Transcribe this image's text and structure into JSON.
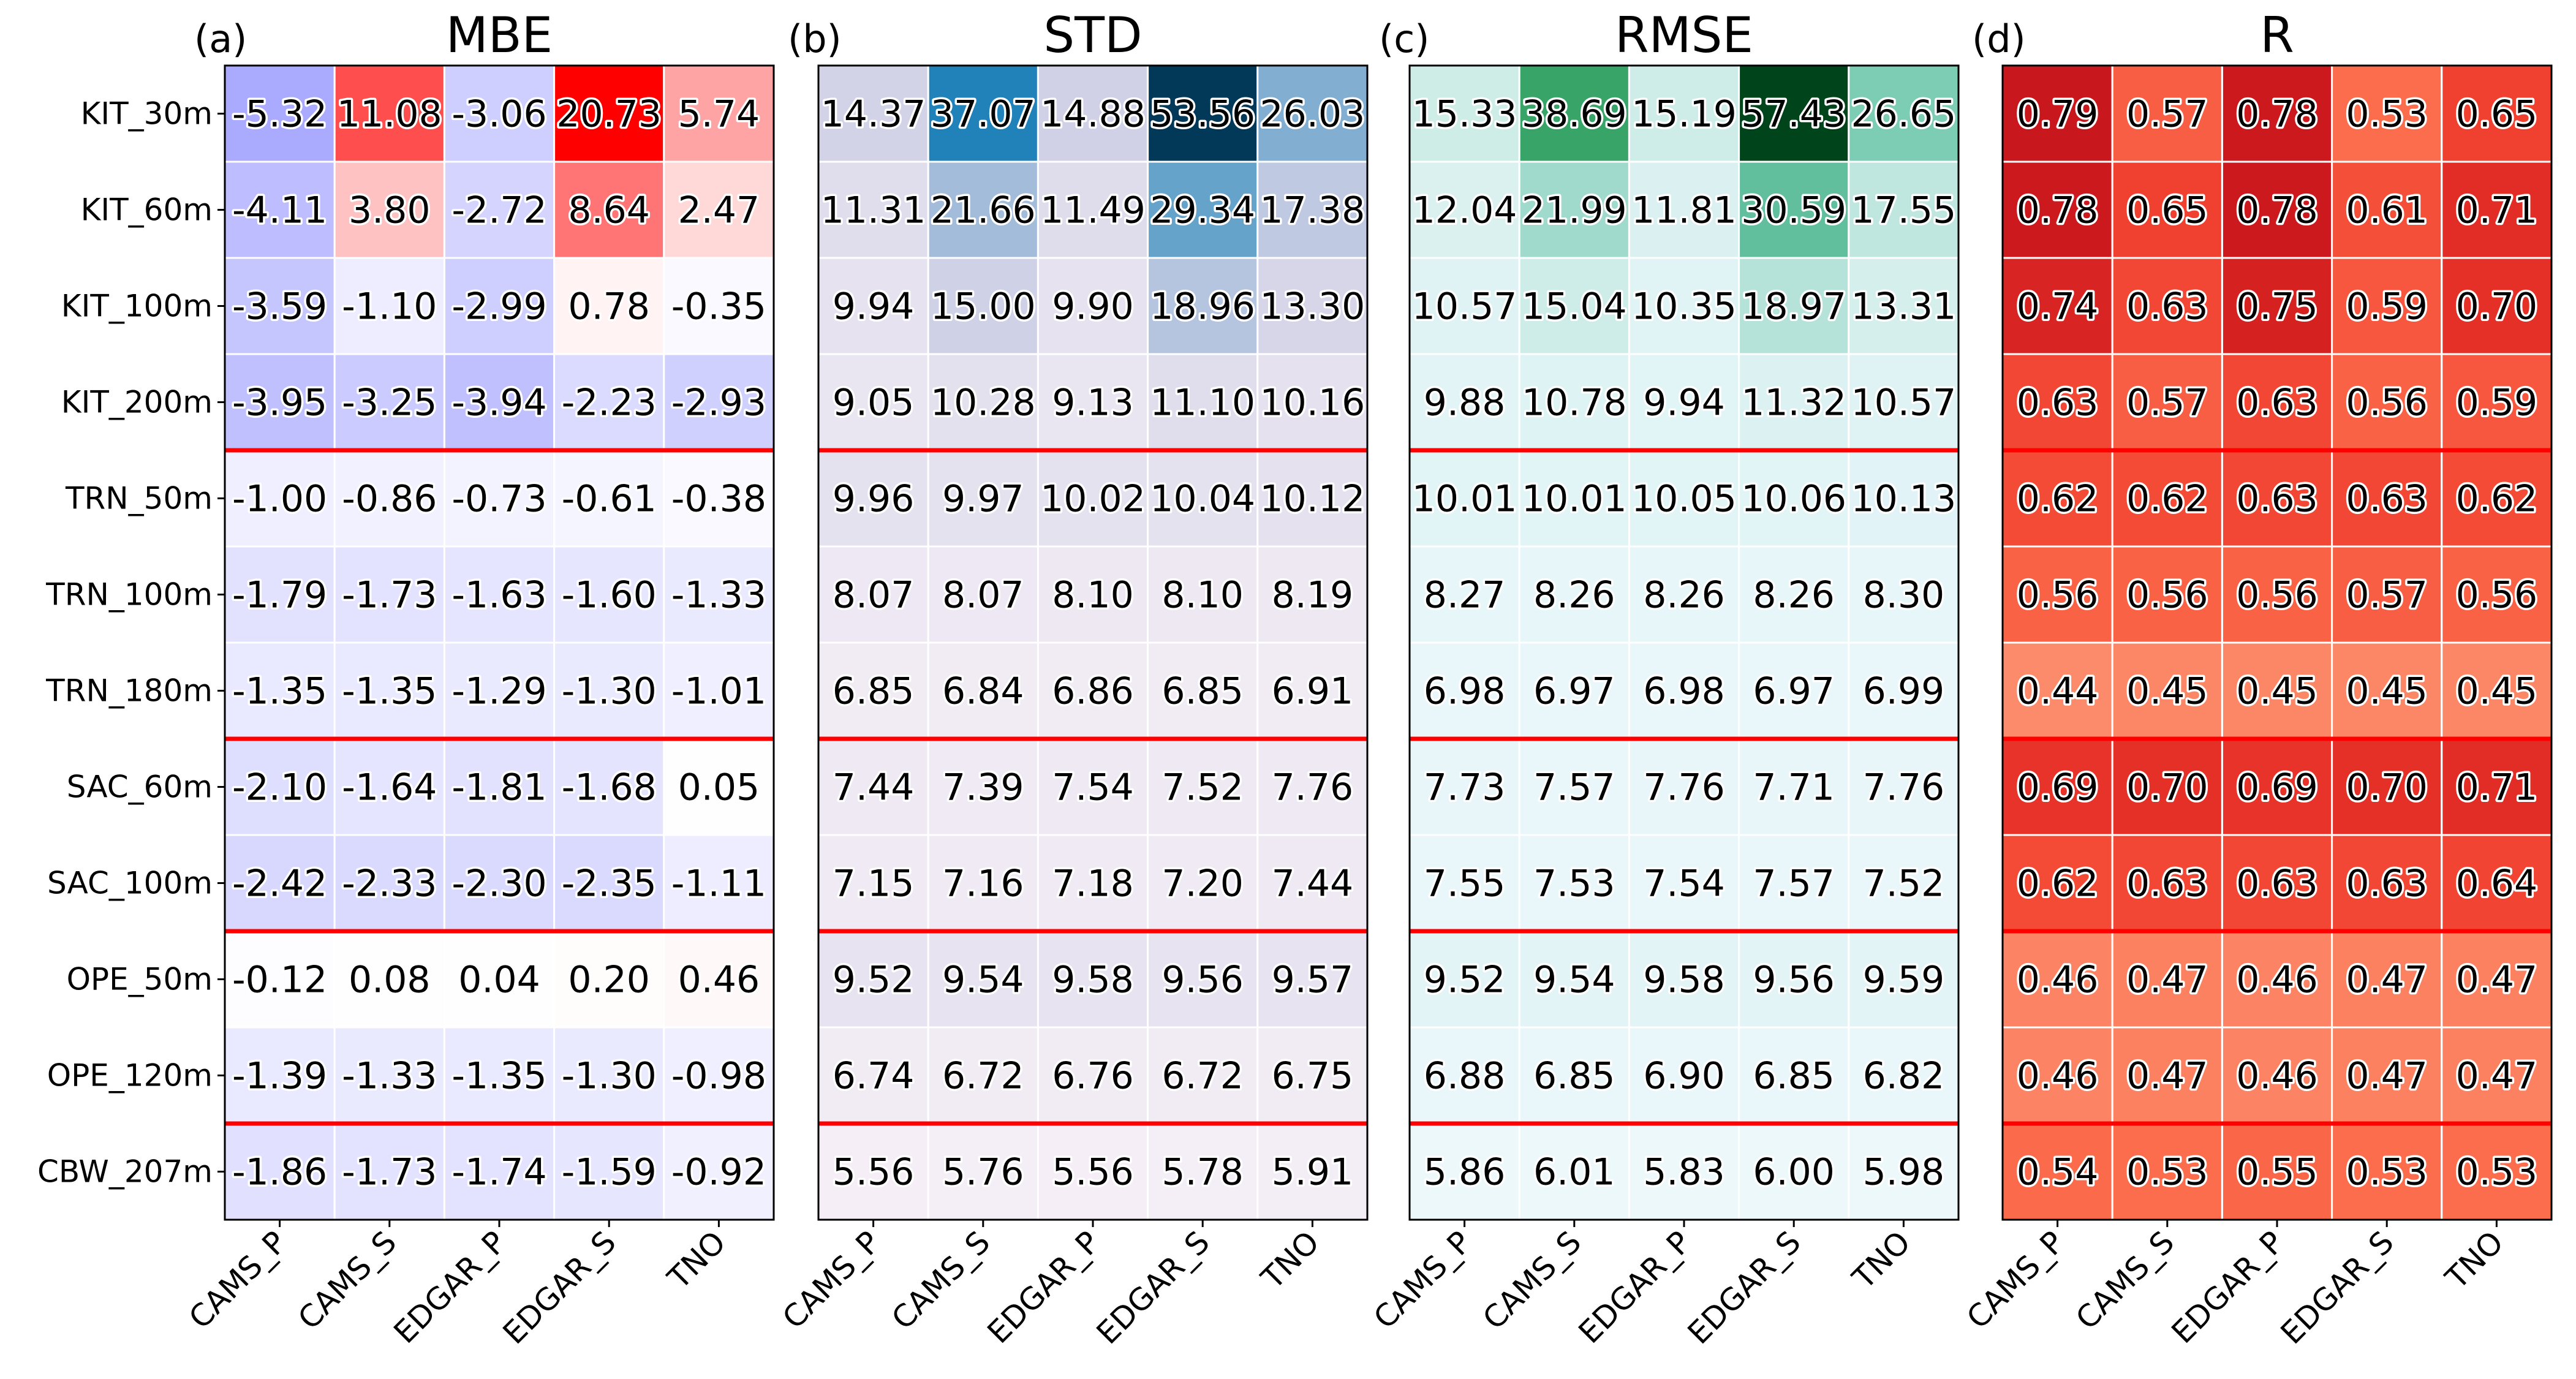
{
  "chart_data": {
    "type": "heatmap",
    "rows": [
      "KIT_30m",
      "KIT_60m",
      "KIT_100m",
      "KIT_200m",
      "TRN_50m",
      "TRN_100m",
      "TRN_180m",
      "SAC_60m",
      "SAC_100m",
      "OPE_50m",
      "OPE_120m",
      "CBW_207m"
    ],
    "columns": [
      "CAMS_P",
      "CAMS_S",
      "EDGAR_P",
      "EDGAR_S",
      "TNO"
    ],
    "group_separators_after_rows": [
      3,
      6,
      8,
      10
    ],
    "separator_color": "#ff0000",
    "panels": [
      {
        "label": "(a)",
        "title": "MBE",
        "colormap": "bwr",
        "vlim": [
          -16,
          16
        ],
        "values": [
          [
            -5.32,
            11.08,
            -3.06,
            20.73,
            5.74
          ],
          [
            -4.11,
            3.8,
            -2.72,
            8.64,
            2.47
          ],
          [
            -3.59,
            -1.1,
            -2.99,
            0.78,
            -0.35
          ],
          [
            -3.95,
            -3.25,
            -3.94,
            -2.23,
            -2.93
          ],
          [
            -1.0,
            -0.86,
            -0.73,
            -0.61,
            -0.38
          ],
          [
            -1.79,
            -1.73,
            -1.63,
            -1.6,
            -1.33
          ],
          [
            -1.35,
            -1.35,
            -1.29,
            -1.3,
            -1.01
          ],
          [
            -2.1,
            -1.64,
            -1.81,
            -1.68,
            0.05
          ],
          [
            -2.42,
            -2.33,
            -2.3,
            -2.35,
            -1.11
          ],
          [
            -0.12,
            0.08,
            0.04,
            0.2,
            0.46
          ],
          [
            -1.39,
            -1.33,
            -1.35,
            -1.3,
            -0.98
          ],
          [
            -1.86,
            -1.73,
            -1.74,
            -1.59,
            -0.92
          ]
        ]
      },
      {
        "label": "(b)",
        "title": "STD",
        "colormap": "PuBu",
        "vlim": [
          2,
          53.56
        ],
        "values": [
          [
            14.37,
            37.07,
            14.88,
            53.56,
            26.03
          ],
          [
            11.31,
            21.66,
            11.49,
            29.34,
            17.38
          ],
          [
            9.94,
            15.0,
            9.9,
            18.96,
            13.3
          ],
          [
            9.05,
            10.28,
            9.13,
            11.1,
            10.16
          ],
          [
            9.96,
            9.97,
            10.02,
            10.04,
            10.12
          ],
          [
            8.07,
            8.07,
            8.1,
            8.1,
            8.19
          ],
          [
            6.85,
            6.84,
            6.86,
            6.85,
            6.91
          ],
          [
            7.44,
            7.39,
            7.54,
            7.52,
            7.76
          ],
          [
            7.15,
            7.16,
            7.18,
            7.2,
            7.44
          ],
          [
            9.52,
            9.54,
            9.58,
            9.56,
            9.57
          ],
          [
            6.74,
            6.72,
            6.76,
            6.72,
            6.75
          ],
          [
            5.56,
            5.76,
            5.56,
            5.78,
            5.91
          ]
        ]
      },
      {
        "label": "(c)",
        "title": "RMSE",
        "colormap": "BuGn",
        "vlim": [
          2,
          57.43
        ],
        "values": [
          [
            15.33,
            38.69,
            15.19,
            57.43,
            26.65
          ],
          [
            12.04,
            21.99,
            11.81,
            30.59,
            17.55
          ],
          [
            10.57,
            15.04,
            10.35,
            18.97,
            13.31
          ],
          [
            9.88,
            10.78,
            9.94,
            11.32,
            10.57
          ],
          [
            10.01,
            10.01,
            10.05,
            10.06,
            10.13
          ],
          [
            8.27,
            8.26,
            8.26,
            8.26,
            8.3
          ],
          [
            6.98,
            6.97,
            6.98,
            6.97,
            6.99
          ],
          [
            7.73,
            7.57,
            7.76,
            7.71,
            7.76
          ],
          [
            7.55,
            7.53,
            7.54,
            7.57,
            7.52
          ],
          [
            9.52,
            9.54,
            9.58,
            9.56,
            9.59
          ],
          [
            6.88,
            6.85,
            6.9,
            6.85,
            6.82
          ],
          [
            5.86,
            6.01,
            5.83,
            6.0,
            5.98
          ]
        ]
      },
      {
        "label": "(d)",
        "title": "R",
        "colormap": "Reds",
        "vlim": [
          0.05,
          1.03
        ],
        "values": [
          [
            0.79,
            0.57,
            0.78,
            0.53,
            0.65
          ],
          [
            0.78,
            0.65,
            0.78,
            0.61,
            0.71
          ],
          [
            0.74,
            0.63,
            0.75,
            0.59,
            0.7
          ],
          [
            0.63,
            0.57,
            0.63,
            0.56,
            0.59
          ],
          [
            0.62,
            0.62,
            0.63,
            0.63,
            0.62
          ],
          [
            0.56,
            0.56,
            0.56,
            0.57,
            0.56
          ],
          [
            0.44,
            0.45,
            0.45,
            0.45,
            0.45
          ],
          [
            0.69,
            0.7,
            0.69,
            0.7,
            0.71
          ],
          [
            0.62,
            0.63,
            0.63,
            0.63,
            0.64
          ],
          [
            0.46,
            0.47,
            0.46,
            0.47,
            0.47
          ],
          [
            0.46,
            0.47,
            0.46,
            0.47,
            0.47
          ],
          [
            0.54,
            0.53,
            0.55,
            0.53,
            0.53
          ]
        ]
      }
    ]
  }
}
